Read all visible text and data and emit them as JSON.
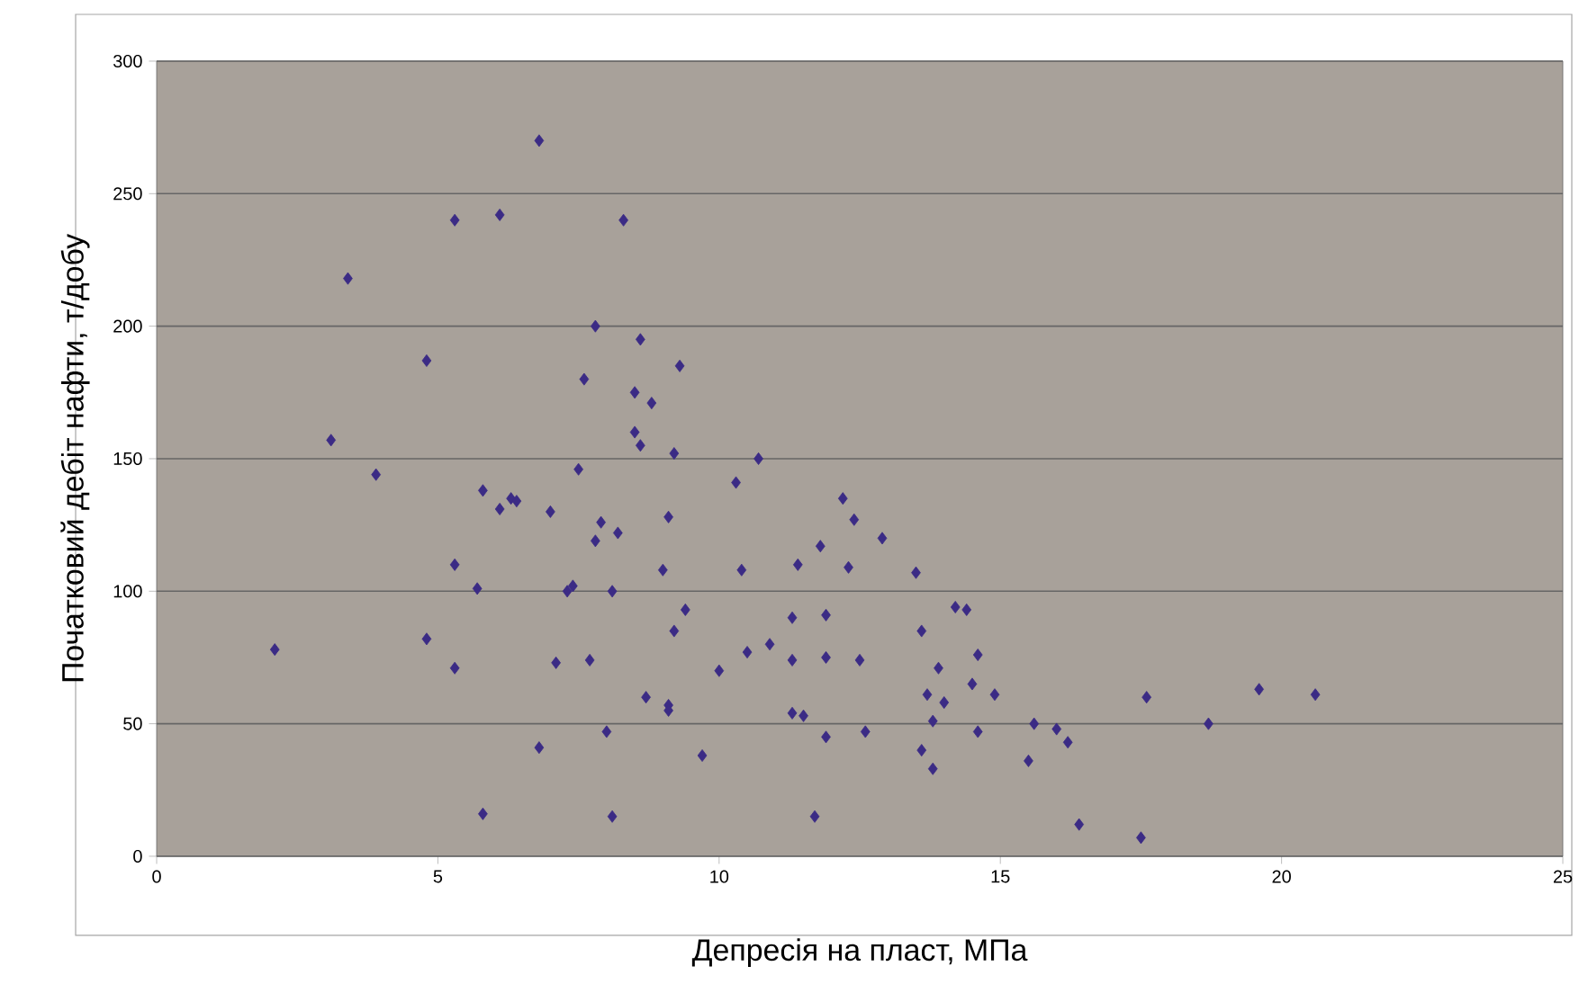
{
  "chart_data": {
    "type": "scatter",
    "xlabel": "Депресія на пласт, МПа",
    "ylabel": "Початковий дебіт нафти, т/добу",
    "marker": "diamond",
    "grid": "y",
    "xlim": [
      0,
      25
    ],
    "ylim": [
      0,
      300
    ],
    "xticks": [
      0,
      5,
      10,
      15,
      20,
      25
    ],
    "yticks": [
      0,
      50,
      100,
      150,
      200,
      250,
      300
    ],
    "series": [
      {
        "color": "#3b2b85",
        "x": [
          2.1,
          3.1,
          3.4,
          3.9,
          4.8,
          4.8,
          5.3,
          5.3,
          5.3,
          5.7,
          5.8,
          5.8,
          6.1,
          6.1,
          6.3,
          6.4,
          6.8,
          6.8,
          7.0,
          7.1,
          7.3,
          7.4,
          7.5,
          7.6,
          7.7,
          7.8,
          7.8,
          7.9,
          8.0,
          8.1,
          8.1,
          8.2,
          8.3,
          8.5,
          8.5,
          8.6,
          8.6,
          8.7,
          8.8,
          9.0,
          9.1,
          9.1,
          9.1,
          9.2,
          9.2,
          9.3,
          9.4,
          9.7,
          10.0,
          10.3,
          10.4,
          10.5,
          10.7,
          10.9,
          11.3,
          11.3,
          11.3,
          11.4,
          11.5,
          11.7,
          11.8,
          11.9,
          11.9,
          11.9,
          12.2,
          12.3,
          12.4,
          12.5,
          12.6,
          12.9,
          13.5,
          13.6,
          13.6,
          13.7,
          13.8,
          13.8,
          13.9,
          14.0,
          14.2,
          14.4,
          14.5,
          14.6,
          14.6,
          14.9,
          15.5,
          15.6,
          16.0,
          16.2,
          16.4,
          17.5,
          17.6,
          18.7,
          19.6,
          20.6
        ],
        "values": [
          78,
          157,
          218,
          144,
          187,
          82,
          110,
          240,
          71,
          101,
          138,
          16,
          242,
          131,
          135,
          134,
          270,
          41,
          130,
          73,
          100,
          102,
          146,
          180,
          74,
          119,
          200,
          126,
          47,
          100,
          15,
          122,
          240,
          175,
          160,
          195,
          155,
          60,
          171,
          108,
          128,
          57,
          55,
          85,
          152,
          185,
          93,
          38,
          70,
          141,
          108,
          77,
          150,
          80,
          54,
          90,
          74,
          110,
          53,
          15,
          117,
          91,
          75,
          45,
          135,
          109,
          127,
          74,
          47,
          120,
          107,
          85,
          40,
          61,
          33,
          51,
          71,
          58,
          94,
          93,
          65,
          76,
          47,
          61,
          36,
          50,
          48,
          43,
          12,
          7,
          60,
          50,
          63,
          61
        ]
      }
    ]
  }
}
